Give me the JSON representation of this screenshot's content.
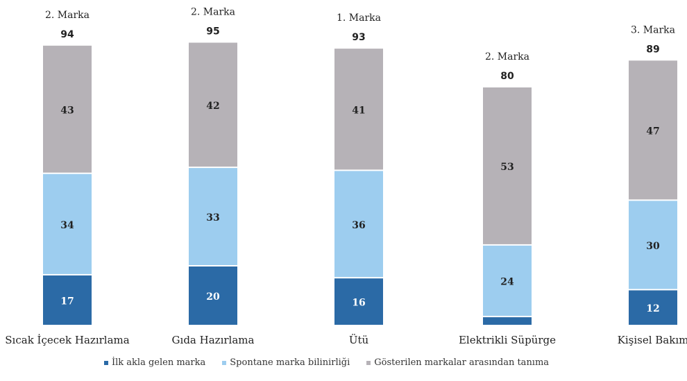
{
  "chart_data": {
    "type": "bar",
    "stacked": true,
    "categories": [
      "Sıcak İçecek Hazırlama",
      "Gıda Hazırlama",
      "Ütü",
      "Elektrikli Süpürge",
      "Kişisel Bakım"
    ],
    "rank_labels": [
      "2. Marka",
      "2. Marka",
      "1. Marka",
      "2. Marka",
      "3. Marka"
    ],
    "totals": [
      94,
      95,
      93,
      80,
      89
    ],
    "series": [
      {
        "name": "İlk akla gelen marka",
        "color": "#2b6aa6",
        "values": [
          17,
          20,
          16,
          3,
          12
        ]
      },
      {
        "name": "Spontane marka bilinirliği",
        "color": "#9dcdef",
        "values": [
          34,
          33,
          36,
          24,
          30
        ]
      },
      {
        "name": "Gösterilen markalar arasından tanıma",
        "color": "#b6b2b7",
        "values": [
          43,
          42,
          41,
          53,
          47
        ]
      }
    ],
    "ylim": [
      0,
      100
    ],
    "show_segment_labels": [
      [
        true,
        true,
        true,
        false,
        true
      ],
      [
        true,
        true,
        true,
        true,
        true
      ],
      [
        true,
        true,
        true,
        true,
        true
      ]
    ]
  },
  "legend": {
    "items": [
      {
        "label": "İlk akla gelen marka",
        "color": "#2b6aa6"
      },
      {
        "label": "Spontane marka bilinirliği",
        "color": "#9dcdef"
      },
      {
        "label": "Gösterilen markalar arasından tanıma",
        "color": "#b6b2b7"
      }
    ]
  }
}
